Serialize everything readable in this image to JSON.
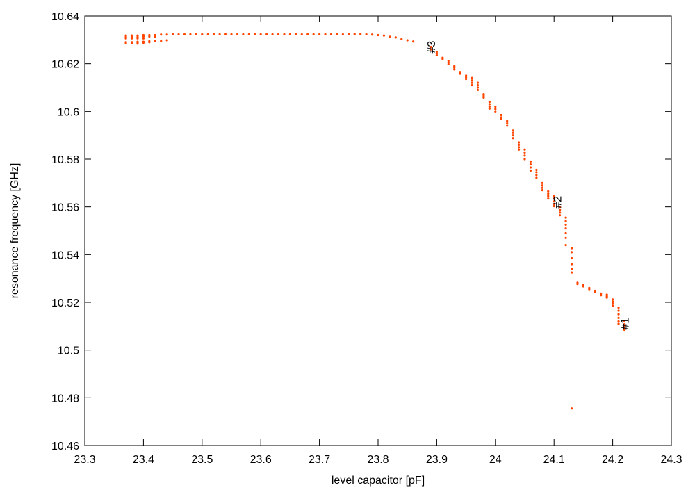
{
  "chart_data": {
    "type": "scatter",
    "title": "",
    "xlabel": "level capacitor [pF]",
    "ylabel": "resonance frequency [GHz]",
    "xlim": [
      23.3,
      24.3
    ],
    "ylim": [
      10.46,
      10.64
    ],
    "xticks": [
      "23.3",
      "23.4",
      "23.5",
      "23.6",
      "23.7",
      "23.8",
      "23.9",
      "24",
      "24.1",
      "24.2",
      "24.3"
    ],
    "yticks": [
      "10.46",
      "10.48",
      "10.5",
      "10.52",
      "10.54",
      "10.56",
      "10.58",
      "10.6",
      "10.62",
      "10.64"
    ],
    "grid": false,
    "point_color": "#ff4500",
    "columns": [
      {
        "x": 23.37,
        "y": [
          10.6318,
          10.6312,
          10.6306,
          10.629,
          10.6286
        ]
      },
      {
        "x": 23.38,
        "y": [
          10.6318,
          10.6312,
          10.6306,
          10.629,
          10.6286
        ]
      },
      {
        "x": 23.39,
        "y": [
          10.6318,
          10.6312,
          10.6306,
          10.6292,
          10.6288,
          10.6284
        ]
      },
      {
        "x": 23.4,
        "y": [
          10.632,
          10.6314,
          10.6306,
          10.6292,
          10.6288
        ]
      },
      {
        "x": 23.41,
        "y": [
          10.632,
          10.6314,
          10.6294,
          10.629
        ]
      },
      {
        "x": 23.42,
        "y": [
          10.632,
          10.6312,
          10.6294
        ]
      },
      {
        "x": 23.43,
        "y": [
          10.6322,
          10.6295
        ]
      },
      {
        "x": 23.44,
        "y": [
          10.6322,
          10.6298
        ]
      },
      {
        "x": 23.45,
        "y": [
          10.6323
        ]
      },
      {
        "x": 23.46,
        "y": [
          10.6323
        ]
      },
      {
        "x": 23.47,
        "y": [
          10.6323
        ]
      },
      {
        "x": 23.48,
        "y": [
          10.6323
        ]
      },
      {
        "x": 23.49,
        "y": [
          10.6323
        ]
      },
      {
        "x": 23.5,
        "y": [
          10.6323
        ]
      },
      {
        "x": 23.51,
        "y": [
          10.6323
        ]
      },
      {
        "x": 23.52,
        "y": [
          10.6323
        ]
      },
      {
        "x": 23.53,
        "y": [
          10.6323
        ]
      },
      {
        "x": 23.54,
        "y": [
          10.6323
        ]
      },
      {
        "x": 23.55,
        "y": [
          10.6323
        ]
      },
      {
        "x": 23.56,
        "y": [
          10.6323
        ]
      },
      {
        "x": 23.57,
        "y": [
          10.6323
        ]
      },
      {
        "x": 23.58,
        "y": [
          10.6323
        ]
      },
      {
        "x": 23.59,
        "y": [
          10.6323
        ]
      },
      {
        "x": 23.6,
        "y": [
          10.6323
        ]
      },
      {
        "x": 23.61,
        "y": [
          10.6323
        ]
      },
      {
        "x": 23.62,
        "y": [
          10.6323
        ]
      },
      {
        "x": 23.63,
        "y": [
          10.6323
        ]
      },
      {
        "x": 23.64,
        "y": [
          10.6323
        ]
      },
      {
        "x": 23.65,
        "y": [
          10.6323
        ]
      },
      {
        "x": 23.66,
        "y": [
          10.6323
        ]
      },
      {
        "x": 23.67,
        "y": [
          10.6323
        ]
      },
      {
        "x": 23.68,
        "y": [
          10.6323
        ]
      },
      {
        "x": 23.69,
        "y": [
          10.6323
        ]
      },
      {
        "x": 23.7,
        "y": [
          10.6323
        ]
      },
      {
        "x": 23.71,
        "y": [
          10.6323
        ]
      },
      {
        "x": 23.72,
        "y": [
          10.6323
        ]
      },
      {
        "x": 23.73,
        "y": [
          10.6323
        ]
      },
      {
        "x": 23.74,
        "y": [
          10.6323
        ]
      },
      {
        "x": 23.75,
        "y": [
          10.6323
        ]
      },
      {
        "x": 23.76,
        "y": [
          10.6324
        ]
      },
      {
        "x": 23.77,
        "y": [
          10.6324
        ]
      },
      {
        "x": 23.78,
        "y": [
          10.6323
        ]
      },
      {
        "x": 23.79,
        "y": [
          10.6322
        ]
      },
      {
        "x": 23.8,
        "y": [
          10.632
        ]
      },
      {
        "x": 23.81,
        "y": [
          10.6318
        ]
      },
      {
        "x": 23.82,
        "y": [
          10.6313
        ]
      },
      {
        "x": 23.83,
        "y": [
          10.631
        ]
      },
      {
        "x": 23.84,
        "y": [
          10.6303
        ]
      },
      {
        "x": 23.85,
        "y": [
          10.6298
        ]
      },
      {
        "x": 23.86,
        "y": [
          10.6293
        ]
      },
      {
        "x": 23.89,
        "y": [
          10.627,
          10.626
        ]
      },
      {
        "x": 23.9,
        "y": [
          10.625,
          10.6243,
          10.6236
        ]
      },
      {
        "x": 23.91,
        "y": [
          10.6225,
          10.622
        ]
      },
      {
        "x": 23.92,
        "y": [
          10.6212,
          10.6205,
          10.6198
        ]
      },
      {
        "x": 23.93,
        "y": [
          10.619,
          10.6183,
          10.6176
        ]
      },
      {
        "x": 23.94,
        "y": [
          10.6165,
          10.6158
        ]
      },
      {
        "x": 23.95,
        "y": [
          10.615,
          10.6143,
          10.6136
        ]
      },
      {
        "x": 23.96,
        "y": [
          10.614,
          10.613,
          10.612,
          10.611
        ]
      },
      {
        "x": 23.97,
        "y": [
          10.612,
          10.611,
          10.61,
          10.609
        ]
      },
      {
        "x": 23.98,
        "y": [
          10.6072,
          10.6065,
          10.6058
        ]
      },
      {
        "x": 23.99,
        "y": [
          10.604,
          10.603,
          10.602,
          10.6012
        ]
      },
      {
        "x": 24.0,
        "y": [
          10.602,
          10.601,
          10.6
        ]
      },
      {
        "x": 24.01,
        "y": [
          10.5985,
          10.5975,
          10.5968
        ]
      },
      {
        "x": 24.02,
        "y": [
          10.596,
          10.595,
          10.594
        ]
      },
      {
        "x": 24.03,
        "y": [
          10.592,
          10.591,
          10.59,
          10.5888
        ]
      },
      {
        "x": 24.04,
        "y": [
          10.587,
          10.586,
          10.585,
          10.584
        ]
      },
      {
        "x": 24.05,
        "y": [
          10.584,
          10.5828,
          10.5815,
          10.58
        ]
      },
      {
        "x": 24.06,
        "y": [
          10.579,
          10.5778,
          10.5765,
          10.5752
        ]
      },
      {
        "x": 24.07,
        "y": [
          10.5755,
          10.5745,
          10.5733,
          10.5722
        ]
      },
      {
        "x": 24.08,
        "y": [
          10.57,
          10.569,
          10.568,
          10.567
        ]
      },
      {
        "x": 24.09,
        "y": [
          10.5665,
          10.5655,
          10.5645,
          10.5635
        ]
      },
      {
        "x": 24.1,
        "y": [
          10.5647,
          10.5635,
          10.5623,
          10.5612,
          10.5603
        ]
      },
      {
        "x": 24.11,
        "y": [
          10.56,
          10.5588,
          10.5576,
          10.5565
        ]
      },
      {
        "x": 24.12,
        "y": [
          10.5555,
          10.554,
          10.5525,
          10.551,
          10.549,
          10.547,
          10.544
        ]
      },
      {
        "x": 24.13,
        "y": [
          10.5427,
          10.541,
          10.5385,
          10.536,
          10.534,
          10.5325,
          10.4755
        ]
      },
      {
        "x": 24.14,
        "y": [
          10.5282,
          10.5277
        ]
      },
      {
        "x": 24.15,
        "y": [
          10.5272,
          10.5267
        ]
      },
      {
        "x": 24.16,
        "y": [
          10.526,
          10.5255
        ]
      },
      {
        "x": 24.17,
        "y": [
          10.5248,
          10.5243
        ]
      },
      {
        "x": 24.18,
        "y": [
          10.5237,
          10.523
        ]
      },
      {
        "x": 24.19,
        "y": [
          10.5232,
          10.5226,
          10.522
        ]
      },
      {
        "x": 24.2,
        "y": [
          10.5212,
          10.5203,
          10.5195,
          10.5186
        ]
      },
      {
        "x": 24.21,
        "y": [
          10.5178,
          10.5165,
          10.515,
          10.5135,
          10.512,
          10.511
        ]
      },
      {
        "x": 24.22,
        "y": [
          10.512,
          10.5108,
          10.5098,
          10.509,
          10.5085
        ]
      }
    ],
    "annotations": [
      {
        "text": "#3",
        "x": 23.89,
        "y": 10.627
      },
      {
        "text": "#2",
        "x": 24.105,
        "y": 10.562
      },
      {
        "text": "#1",
        "x": 24.22,
        "y": 10.511
      }
    ]
  }
}
